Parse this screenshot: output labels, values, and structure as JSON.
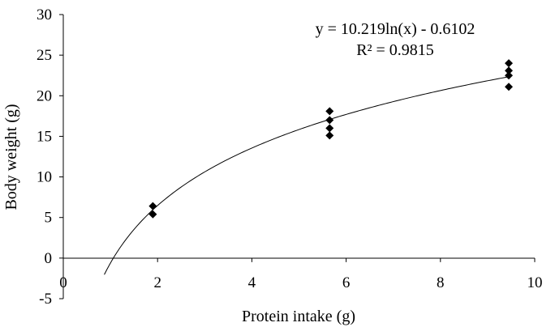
{
  "chart_data": {
    "type": "scatter",
    "title": "",
    "xlabel": "Protein intake (g)",
    "ylabel": "Body weight (g)",
    "xlim": [
      0,
      10
    ],
    "ylim": [
      -5,
      30
    ],
    "x_ticks": [
      0,
      2,
      4,
      6,
      8,
      10
    ],
    "y_ticks": [
      -5,
      0,
      5,
      10,
      15,
      20,
      25,
      30
    ],
    "x_tick_labels": [
      "0",
      "2",
      "4",
      "6",
      "8",
      "10"
    ],
    "y_tick_labels": [
      "-5",
      "0",
      "5",
      "10",
      "15",
      "20",
      "25",
      "30"
    ],
    "grid": false,
    "series": [
      {
        "marker": "diamond",
        "color": "#000000",
        "points": [
          {
            "x": 1.9,
            "y": 6.4
          },
          {
            "x": 1.9,
            "y": 5.4
          },
          {
            "x": 5.65,
            "y": 18.1
          },
          {
            "x": 5.65,
            "y": 17.0
          },
          {
            "x": 5.65,
            "y": 16.0
          },
          {
            "x": 5.65,
            "y": 15.1
          },
          {
            "x": 9.45,
            "y": 24.0
          },
          {
            "x": 9.45,
            "y": 23.1
          },
          {
            "x": 9.45,
            "y": 22.5
          },
          {
            "x": 9.45,
            "y": 21.1
          }
        ]
      }
    ],
    "trendline": {
      "type": "logarithmic",
      "a": 10.219,
      "b": -0.6102,
      "x_range": [
        0.87,
        9.45
      ],
      "color": "#000000"
    },
    "equation_text": "y = 10.219ln(x) - 0.6102",
    "r2_text": "R² = 0.9815"
  }
}
